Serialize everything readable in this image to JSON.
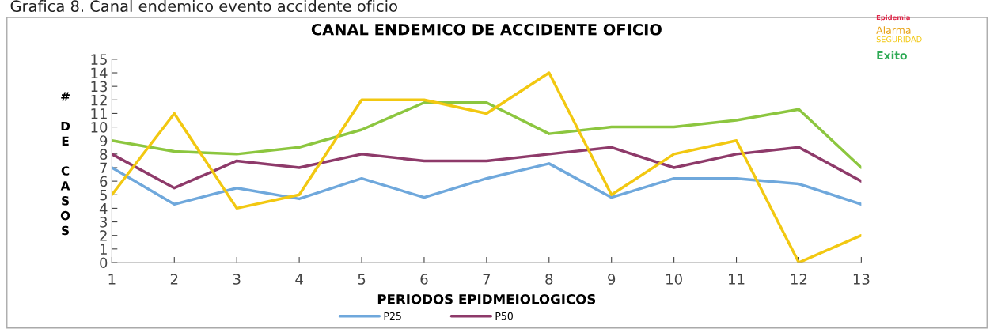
{
  "chart_data": {
    "type": "line",
    "title": "CANAL ENDEMICO DE ACCIDENTE OFICIO",
    "xlabel": "PERIODOS EPIDMEIOLOGICOS",
    "ylabel": "# DE CASOS",
    "categories": [
      "1",
      "2",
      "3",
      "4",
      "5",
      "6",
      "7",
      "8",
      "9",
      "10",
      "11",
      "12",
      "13"
    ],
    "series": [
      {
        "name": "P25",
        "color": "#6fa8dc",
        "values": [
          7,
          4.3,
          5.5,
          4.7,
          6.2,
          4.8,
          6.2,
          7.3,
          4.8,
          6.2,
          6.2,
          5.8,
          4.3
        ]
      },
      {
        "name": "P50",
        "color": "#8e3a6a",
        "values": [
          8,
          5.5,
          7.5,
          7,
          8,
          7.5,
          7.5,
          8,
          8.5,
          7,
          8,
          8.5,
          6
        ]
      },
      {
        "color": "#8cc63f",
        "values": [
          9,
          8.2,
          8,
          8.5,
          9.8,
          11.8,
          11.8,
          9.5,
          10,
          10,
          10.5,
          11.3,
          7
        ]
      },
      {
        "color": "#f2c811",
        "values": [
          5,
          11,
          4,
          5,
          12,
          12,
          11,
          14,
          5,
          8,
          9,
          0,
          2
        ]
      }
    ],
    "ylim": [
      0,
      15
    ],
    "yticks": [
      0,
      1,
      2,
      3,
      4,
      5,
      6,
      7,
      8,
      9,
      10,
      11,
      12,
      13,
      14,
      15
    ],
    "grid": false,
    "legend": "bottom",
    "marker": "none",
    "line_style": "solid",
    "annotations": [
      "Grafica 8. Canal endemico evento accidente oficio",
      "Epidemia",
      "Alarma",
      "SEGURIDAD",
      "Exito"
    ]
  }
}
